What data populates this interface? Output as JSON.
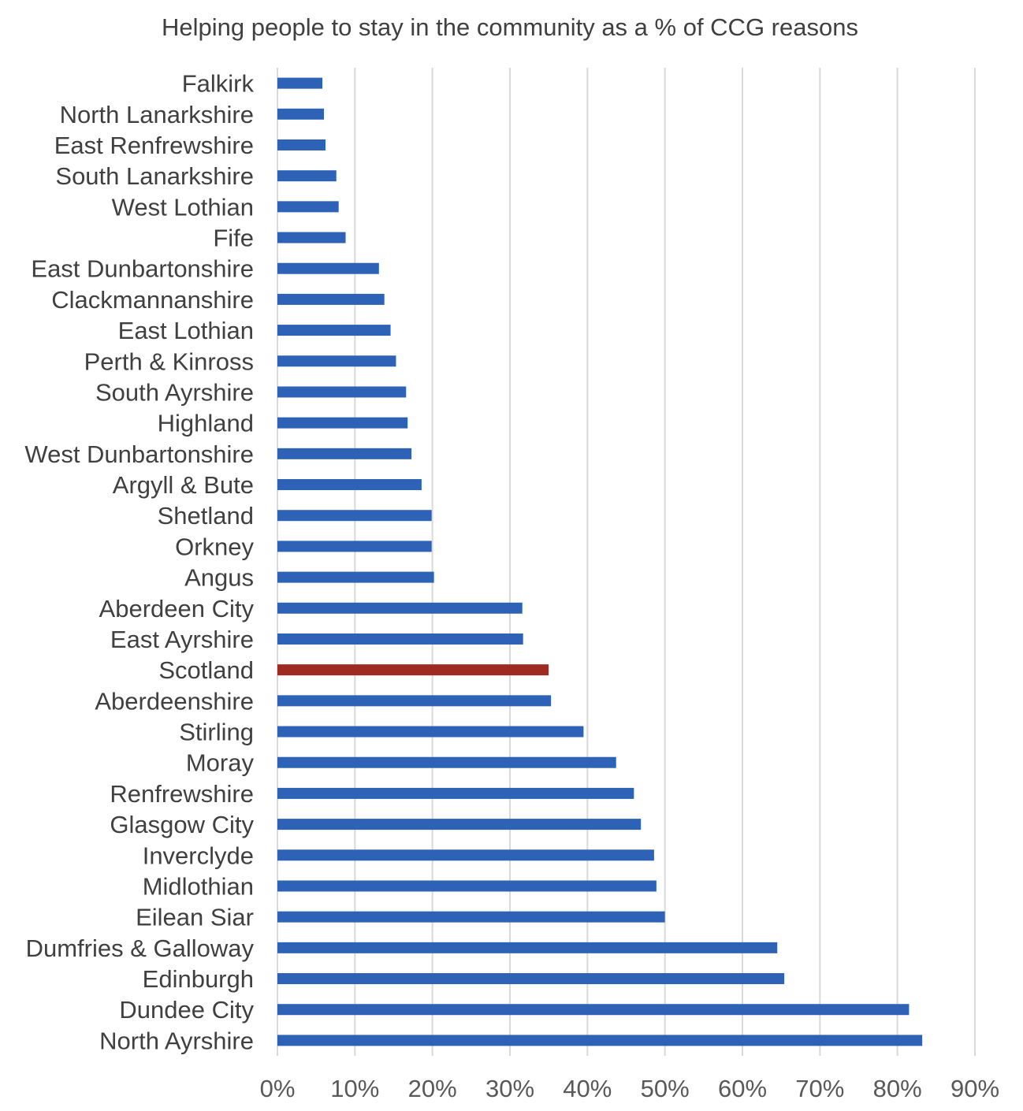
{
  "chart_data": {
    "type": "bar",
    "orientation": "horizontal",
    "title": "Helping people to stay in the community as a % of CCG reasons",
    "xlabel": "",
    "ylabel": "",
    "xlim": [
      0,
      90
    ],
    "x_ticks": [
      "0%",
      "10%",
      "20%",
      "30%",
      "40%",
      "50%",
      "60%",
      "70%",
      "80%",
      "90%"
    ],
    "grid": "vertical",
    "legend": "none",
    "default_color": "#2e62b6",
    "highlight_color": "#9e2a22",
    "highlight_category": "Scotland",
    "categories": [
      "Falkirk",
      "North Lanarkshire",
      "East Renfrewshire",
      "South Lanarkshire",
      "West Lothian",
      "Fife",
      "East Dunbartonshire",
      "Clackmannanshire",
      "East Lothian",
      "Perth & Kinross",
      "South Ayrshire",
      "Highland",
      "West Dunbartonshire",
      "Argyll & Bute",
      "Shetland",
      "Orkney",
      "Angus",
      "Aberdeen City",
      "East Ayrshire",
      "Scotland",
      "Aberdeenshire",
      "Stirling",
      "Moray",
      "Renfrewshire",
      "Glasgow City",
      "Inverclyde",
      "Midlothian",
      "Eilean Siar",
      "Dumfries & Galloway",
      "Edinburgh",
      "Dundee City",
      "North Ayrshire"
    ],
    "values": [
      5.8,
      6.0,
      6.2,
      7.6,
      7.9,
      8.8,
      13.1,
      13.8,
      14.6,
      15.3,
      16.6,
      16.8,
      17.3,
      18.6,
      19.9,
      19.9,
      20.2,
      31.6,
      31.7,
      35.0,
      35.3,
      39.5,
      43.7,
      46.0,
      46.9,
      48.6,
      48.9,
      50.0,
      64.5,
      65.4,
      81.5,
      83.2
    ]
  }
}
